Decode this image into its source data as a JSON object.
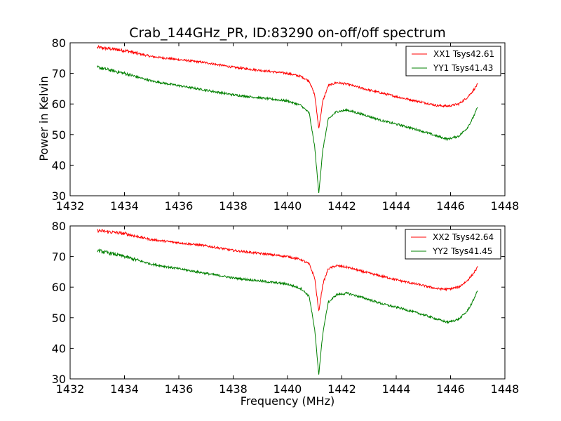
{
  "figure": {
    "title": "Crab_144GHz_PR, ID:83290 on-off/off spectrum",
    "ylabel": "Power in Kelvin",
    "xlabel": "Frequency (MHz)"
  },
  "chart_data": [
    {
      "type": "line",
      "xlim": [
        1432,
        1448
      ],
      "ylim": [
        30,
        80
      ],
      "xticks": [
        1432,
        1434,
        1436,
        1438,
        1440,
        1442,
        1444,
        1446,
        1448
      ],
      "yticks": [
        30,
        40,
        50,
        60,
        70,
        80
      ],
      "ylabel": "Power in Kelvin",
      "xlabel": "",
      "legend_position": "top-right",
      "grid": false,
      "series": [
        {
          "name": "XX1 Tsys42.61",
          "color": "#ff0000",
          "x": [
            1433.0,
            1434.0,
            1435.0,
            1436.0,
            1437.0,
            1438.0,
            1439.0,
            1440.0,
            1440.5,
            1440.8,
            1441.0,
            1441.15,
            1441.3,
            1441.5,
            1441.8,
            1442.2,
            1442.8,
            1443.5,
            1444.2,
            1445.0,
            1445.5,
            1445.9,
            1446.3,
            1446.6,
            1446.8,
            1447.0
          ],
          "values": [
            78.5,
            77.5,
            75.5,
            74.5,
            73.5,
            72.0,
            71.0,
            70.0,
            69.0,
            67.5,
            63.0,
            52.0,
            61.0,
            66.0,
            67.0,
            66.5,
            65.0,
            63.5,
            62.0,
            60.5,
            59.5,
            59.3,
            60.0,
            62.0,
            64.0,
            66.5
          ]
        },
        {
          "name": "YY1 Tsys41.43",
          "color": "#008000",
          "x": [
            1433.0,
            1434.0,
            1435.0,
            1436.0,
            1437.0,
            1438.0,
            1439.0,
            1440.0,
            1440.5,
            1440.8,
            1441.0,
            1441.15,
            1441.3,
            1441.5,
            1441.8,
            1442.2,
            1442.8,
            1443.5,
            1444.2,
            1445.0,
            1445.5,
            1445.9,
            1446.3,
            1446.6,
            1446.8,
            1447.0
          ],
          "values": [
            72.0,
            70.0,
            67.5,
            66.0,
            64.5,
            63.0,
            62.0,
            61.0,
            59.5,
            57.0,
            46.0,
            31.0,
            45.0,
            55.0,
            57.5,
            58.0,
            56.5,
            54.5,
            53.0,
            51.0,
            49.5,
            48.5,
            49.5,
            52.0,
            55.0,
            59.0
          ]
        }
      ]
    },
    {
      "type": "line",
      "xlim": [
        1432,
        1448
      ],
      "ylim": [
        30,
        80
      ],
      "xticks": [
        1432,
        1434,
        1436,
        1438,
        1440,
        1442,
        1444,
        1446,
        1448
      ],
      "yticks": [
        30,
        40,
        50,
        60,
        70,
        80
      ],
      "ylabel": "",
      "xlabel": "Frequency (MHz)",
      "legend_position": "top-right",
      "grid": false,
      "series": [
        {
          "name": "XX2 Tsys42.64",
          "color": "#ff0000",
          "x": [
            1433.0,
            1434.0,
            1435.0,
            1436.0,
            1437.0,
            1438.0,
            1439.0,
            1440.0,
            1440.5,
            1440.8,
            1441.0,
            1441.15,
            1441.3,
            1441.5,
            1441.8,
            1442.2,
            1442.8,
            1443.5,
            1444.2,
            1445.0,
            1445.5,
            1445.9,
            1446.3,
            1446.6,
            1446.8,
            1447.0
          ],
          "values": [
            78.5,
            77.5,
            75.5,
            74.5,
            73.5,
            72.0,
            71.0,
            70.0,
            69.0,
            67.5,
            63.0,
            52.0,
            61.0,
            66.0,
            67.0,
            66.5,
            65.0,
            63.5,
            62.0,
            60.5,
            59.5,
            59.3,
            60.0,
            62.0,
            64.0,
            66.5
          ]
        },
        {
          "name": "YY2 Tsys41.45",
          "color": "#008000",
          "x": [
            1433.0,
            1434.0,
            1435.0,
            1436.0,
            1437.0,
            1438.0,
            1439.0,
            1440.0,
            1440.5,
            1440.8,
            1441.0,
            1441.15,
            1441.3,
            1441.5,
            1441.8,
            1442.2,
            1442.8,
            1443.5,
            1444.2,
            1445.0,
            1445.5,
            1445.9,
            1446.3,
            1446.6,
            1446.8,
            1447.0
          ],
          "values": [
            72.0,
            70.0,
            67.5,
            66.0,
            64.5,
            63.0,
            62.0,
            61.0,
            59.5,
            57.0,
            46.0,
            31.5,
            45.0,
            55.0,
            57.5,
            58.0,
            56.5,
            54.5,
            53.0,
            51.0,
            49.5,
            48.5,
            49.5,
            52.0,
            55.0,
            59.0
          ]
        }
      ]
    }
  ]
}
